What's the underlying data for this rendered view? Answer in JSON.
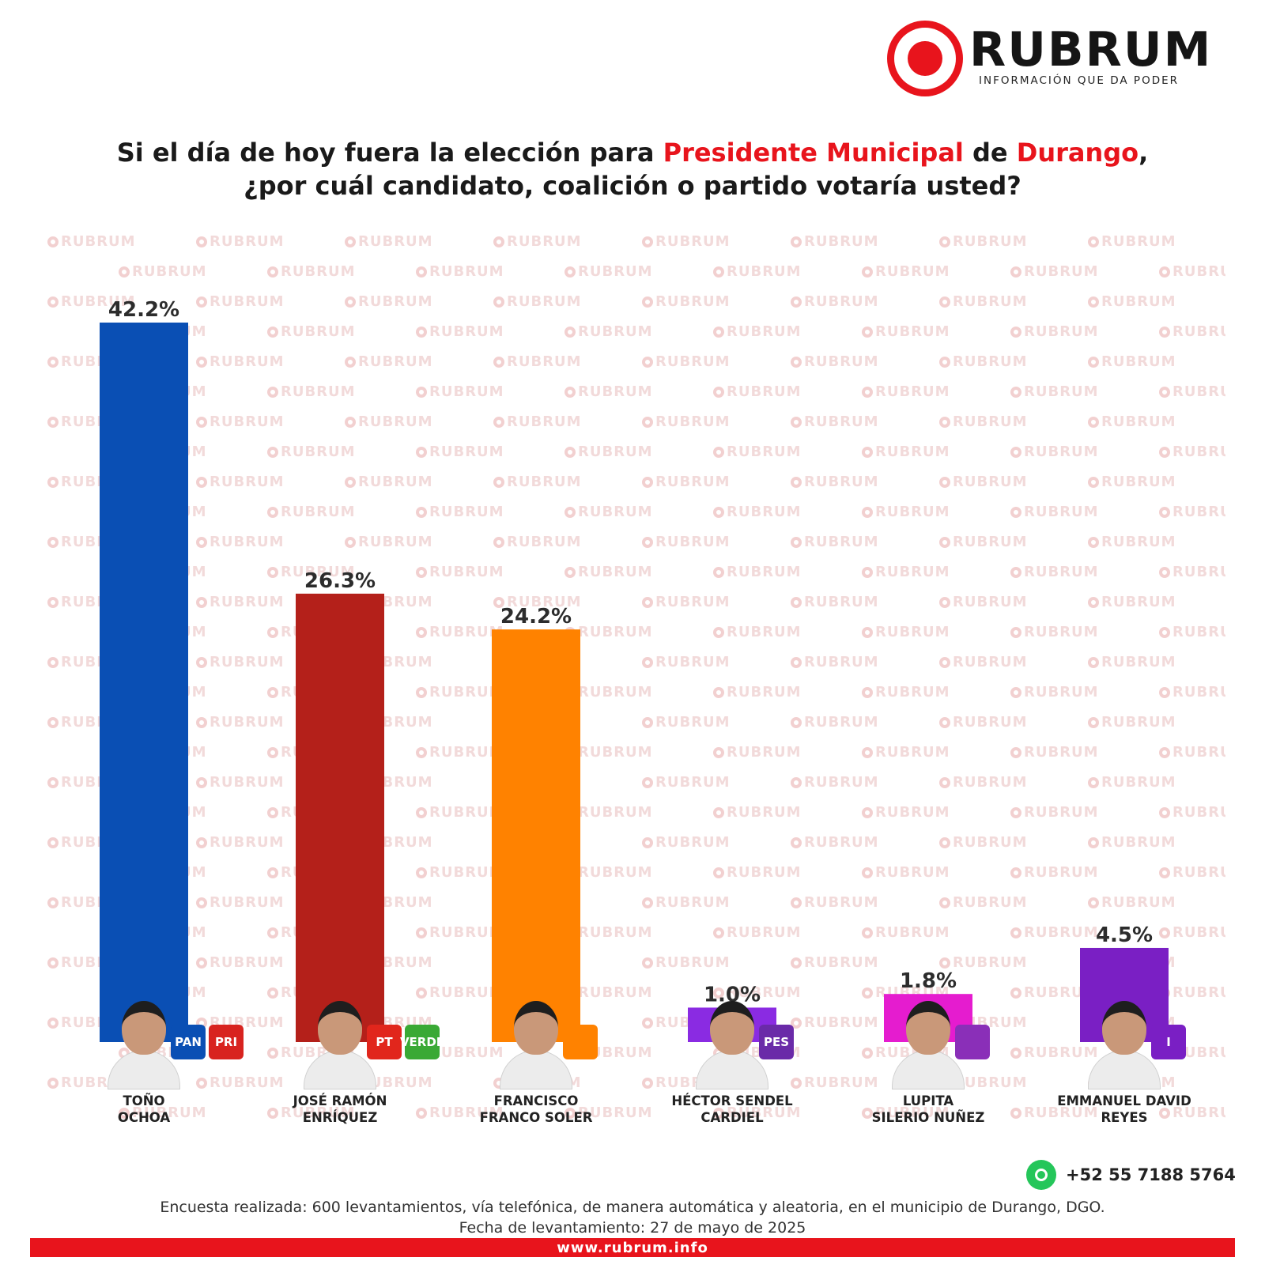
{
  "brand": {
    "name": "RUBRUM",
    "tagline": "INFORMACIÓN QUE DA PODER",
    "accent_color": "#e8141c"
  },
  "title": {
    "part1": "Si el día de hoy fuera la elección para ",
    "highlight1": "Presidente Municipal",
    "part2": " de ",
    "highlight2": "Durango",
    "part3": ",",
    "line2": "¿por cuál candidato, coalición o partido votaría usted?"
  },
  "chart_data": {
    "type": "bar",
    "categories": [
      "TOÑO OCHOA",
      "JOSÉ RAMÓN ENRÍQUEZ",
      "FRANCISCO FRANCO SOLER",
      "HÉCTOR SENDEL CARDIEL",
      "LUPITA SILERIO NUÑEZ",
      "EMMANUEL DAVID REYES"
    ],
    "values": [
      42.2,
      26.3,
      24.2,
      1.0,
      1.8,
      4.5
    ],
    "value_labels": [
      "42.2%",
      "26.3%",
      "24.2%",
      "1.0%",
      "1.8%",
      "4.5%"
    ],
    "colors": [
      "#0a4fb4",
      "#b4201a",
      "#ff8200",
      "#8a2be2",
      "#e51ccf",
      "#7a1fc4"
    ],
    "candidate_lines": [
      [
        "TOÑO",
        "OCHOA"
      ],
      [
        "JOSÉ RAMÓN",
        "ENRÍQUEZ"
      ],
      [
        "FRANCISCO",
        "FRANCO SOLER"
      ],
      [
        "HÉCTOR SENDEL",
        "CARDIEL"
      ],
      [
        "LUPITA",
        "SILERIO NUÑEZ"
      ],
      [
        "EMMANUEL DAVID",
        "REYES"
      ]
    ],
    "party_badges": [
      [
        {
          "label": "PAN",
          "color": "#0a4fb4",
          "icon": "pan-logo"
        },
        {
          "label": "PRI",
          "color": "#d8231f",
          "icon": "pri-logo"
        }
      ],
      [
        {
          "label": "PT",
          "color": "#e1261c",
          "icon": "pt-logo"
        },
        {
          "label": "VERDE",
          "color": "#3aa935",
          "icon": "verde-logo"
        }
      ],
      [
        {
          "label": "",
          "color": "#ff8200",
          "icon": "movimiento-ciudadano-logo"
        }
      ],
      [
        {
          "label": "PES",
          "color": "#6a2aa8",
          "icon": "pes-logo"
        }
      ],
      [
        {
          "label": "",
          "color": "#8a2fb8",
          "icon": "renovacion-logo"
        }
      ],
      [
        {
          "label": "I",
          "color": "#7a1fc4",
          "icon": "independiente-logo"
        }
      ]
    ],
    "ylim": [
      0,
      45
    ],
    "grid": false,
    "legend": "none"
  },
  "contact": {
    "phone": "+52 55 7188 5764",
    "icon": "whatsapp-icon"
  },
  "footnote": {
    "line1": "Encuesta realizada: 600 levantamientos, vía telefónica, de manera automática y aleatoria, en el municipio de Durango, DGO.",
    "line2": "Fecha de levantamiento: 27 de mayo de 2025"
  },
  "footer": {
    "url": "www.rubrum.info"
  },
  "watermark_text": "RUBRUM"
}
